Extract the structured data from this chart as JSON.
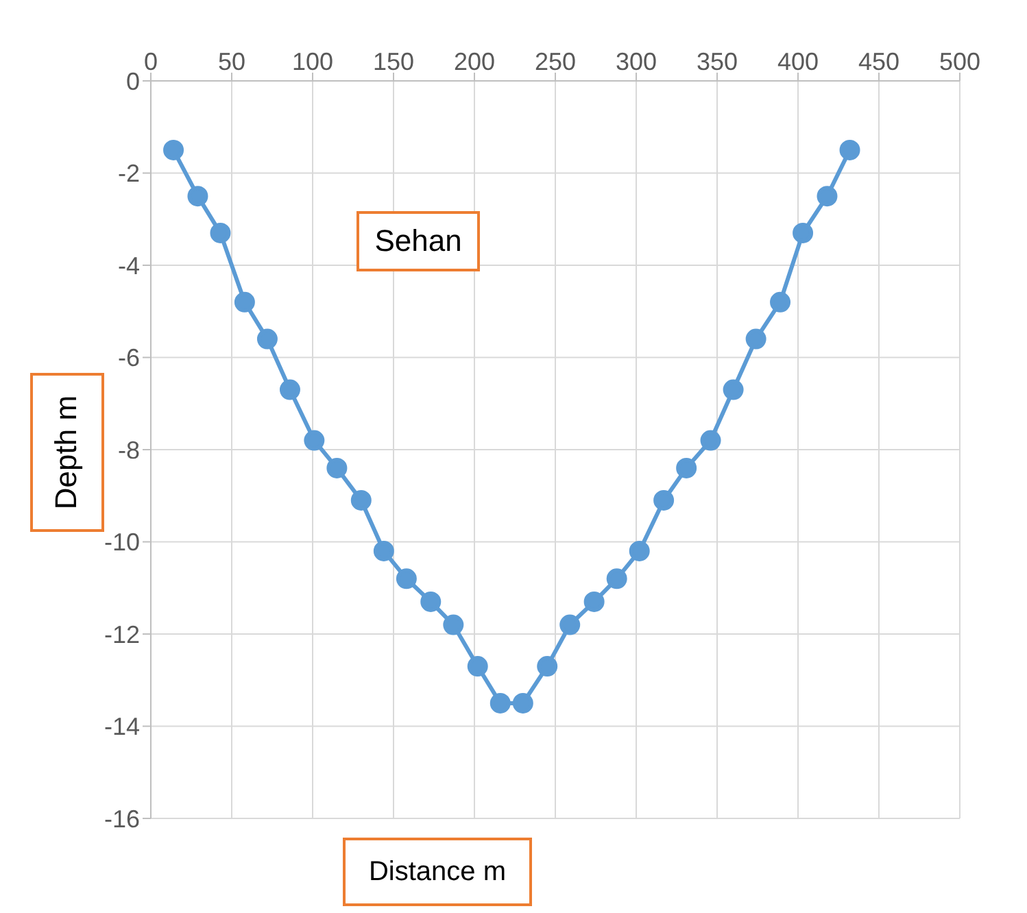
{
  "chart_data": {
    "type": "line",
    "title": "Sehan",
    "xlabel": "Distance m",
    "ylabel": "Depth m",
    "x": [
      14,
      29,
      43,
      58,
      72,
      86,
      101,
      115,
      130,
      144,
      158,
      173,
      187,
      202,
      216,
      230,
      245,
      259,
      274,
      288,
      302,
      317,
      331,
      346,
      360,
      374,
      389,
      403,
      418,
      432
    ],
    "series": [
      {
        "color": "#5b9bd5",
        "values": [
          -1.5,
          -2.5,
          -3.3,
          -4.8,
          -5.6,
          -6.7,
          -7.8,
          -8.4,
          -9.1,
          -10.2,
          -10.8,
          -11.3,
          -11.8,
          -12.7,
          -13.5,
          -13.5,
          -12.7,
          -11.8,
          -11.3,
          -10.8,
          -10.2,
          -9.1,
          -8.4,
          -7.8,
          -6.7,
          -5.6,
          -4.8,
          -3.3,
          -2.5,
          -1.5
        ]
      }
    ],
    "xlim": [
      0,
      500
    ],
    "xticks": [
      0,
      50,
      100,
      150,
      200,
      250,
      300,
      350,
      400,
      450,
      500
    ],
    "ylim": [
      -16,
      0
    ],
    "yticks": [
      0,
      -2,
      -4,
      -6,
      -8,
      -10,
      -12,
      -14,
      -16
    ],
    "grid": true,
    "marker": "circle",
    "line_style": "solid"
  }
}
